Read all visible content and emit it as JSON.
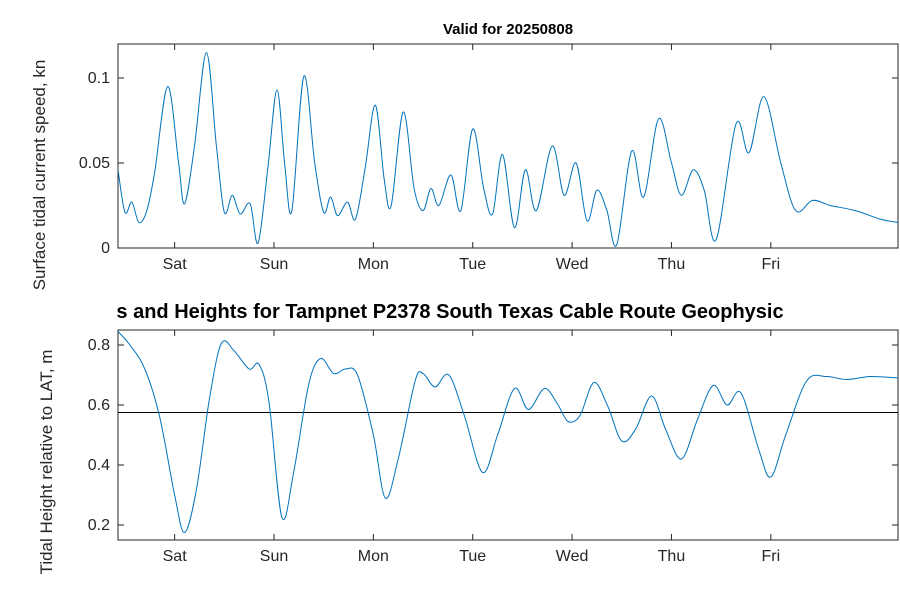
{
  "colors": {
    "line": "#0072BD",
    "axis": "#262626",
    "ref_line": "#000000"
  },
  "chart_data": [
    {
      "type": "line",
      "title": "Valid for 20250808",
      "ylabel": "Surface tidal current speed, kn",
      "xlabel": "",
      "x_unit": "day of week",
      "xlim": [
        0.43,
        8.28
      ],
      "ylim": [
        0,
        0.12
      ],
      "xticks": [
        1,
        2,
        3,
        4,
        5,
        6,
        7
      ],
      "xtick_labels": [
        "Sat",
        "Sun",
        "Mon",
        "Tue",
        "Wed",
        "Thu",
        "Fri"
      ],
      "yticks": [
        0,
        0.05,
        0.1
      ],
      "ytick_labels": [
        "0",
        "0.05",
        "0.1"
      ],
      "grid": false,
      "legend": null,
      "points": [
        [
          0.43,
          0.046
        ],
        [
          0.5,
          0.021
        ],
        [
          0.57,
          0.027
        ],
        [
          0.64,
          0.015
        ],
        [
          0.72,
          0.022
        ],
        [
          0.8,
          0.045
        ],
        [
          0.93,
          0.095
        ],
        [
          1.04,
          0.05
        ],
        [
          1.1,
          0.026
        ],
        [
          1.2,
          0.06
        ],
        [
          1.32,
          0.115
        ],
        [
          1.42,
          0.06
        ],
        [
          1.5,
          0.021
        ],
        [
          1.58,
          0.031
        ],
        [
          1.66,
          0.02
        ],
        [
          1.76,
          0.026
        ],
        [
          1.84,
          0.003
        ],
        [
          1.94,
          0.048
        ],
        [
          2.03,
          0.093
        ],
        [
          2.11,
          0.048
        ],
        [
          2.18,
          0.022
        ],
        [
          2.3,
          0.101
        ],
        [
          2.41,
          0.05
        ],
        [
          2.5,
          0.021
        ],
        [
          2.57,
          0.03
        ],
        [
          2.64,
          0.019
        ],
        [
          2.74,
          0.027
        ],
        [
          2.82,
          0.017
        ],
        [
          2.92,
          0.048
        ],
        [
          3.02,
          0.084
        ],
        [
          3.11,
          0.04
        ],
        [
          3.18,
          0.025
        ],
        [
          3.3,
          0.08
        ],
        [
          3.41,
          0.035
        ],
        [
          3.5,
          0.022
        ],
        [
          3.58,
          0.035
        ],
        [
          3.66,
          0.025
        ],
        [
          3.78,
          0.043
        ],
        [
          3.88,
          0.022
        ],
        [
          4.0,
          0.07
        ],
        [
          4.11,
          0.035
        ],
        [
          4.2,
          0.02
        ],
        [
          4.3,
          0.055
        ],
        [
          4.42,
          0.012
        ],
        [
          4.53,
          0.046
        ],
        [
          4.64,
          0.022
        ],
        [
          4.8,
          0.06
        ],
        [
          4.92,
          0.031
        ],
        [
          5.04,
          0.05
        ],
        [
          5.15,
          0.016
        ],
        [
          5.25,
          0.034
        ],
        [
          5.35,
          0.022
        ],
        [
          5.45,
          0.002
        ],
        [
          5.6,
          0.057
        ],
        [
          5.72,
          0.03
        ],
        [
          5.87,
          0.076
        ],
        [
          6.0,
          0.05
        ],
        [
          6.1,
          0.031
        ],
        [
          6.22,
          0.046
        ],
        [
          6.33,
          0.034
        ],
        [
          6.45,
          0.005
        ],
        [
          6.65,
          0.073
        ],
        [
          6.78,
          0.056
        ],
        [
          6.93,
          0.089
        ],
        [
          7.1,
          0.05
        ],
        [
          7.25,
          0.022
        ],
        [
          7.42,
          0.028
        ],
        [
          7.6,
          0.025
        ],
        [
          7.85,
          0.022
        ],
        [
          8.1,
          0.017
        ],
        [
          8.28,
          0.015
        ]
      ]
    },
    {
      "type": "line",
      "title": "s and Heights for Tampnet P2378 South Texas Cable Route Geophysic",
      "ylabel": "Tidal Height relative to LAT, m",
      "xlabel": "",
      "x_unit": "day of week",
      "xlim": [
        0.43,
        8.28
      ],
      "ylim": [
        0.15,
        0.85
      ],
      "xticks": [
        1,
        2,
        3,
        4,
        5,
        6,
        7
      ],
      "xtick_labels": [
        "Sat",
        "Sun",
        "Mon",
        "Tue",
        "Wed",
        "Thu",
        "Fri"
      ],
      "yticks": [
        0.2,
        0.4,
        0.6,
        0.8
      ],
      "ytick_labels": [
        "0.2",
        "0.4",
        "0.6",
        "0.8"
      ],
      "grid": false,
      "legend": null,
      "reference_line": 0.575,
      "points": [
        [
          0.43,
          0.845
        ],
        [
          0.55,
          0.8
        ],
        [
          0.7,
          0.72
        ],
        [
          0.85,
          0.56
        ],
        [
          1.0,
          0.3
        ],
        [
          1.1,
          0.175
        ],
        [
          1.22,
          0.32
        ],
        [
          1.35,
          0.62
        ],
        [
          1.47,
          0.805
        ],
        [
          1.6,
          0.78
        ],
        [
          1.75,
          0.72
        ],
        [
          1.85,
          0.735
        ],
        [
          1.95,
          0.61
        ],
        [
          2.08,
          0.225
        ],
        [
          2.2,
          0.38
        ],
        [
          2.35,
          0.67
        ],
        [
          2.47,
          0.755
        ],
        [
          2.6,
          0.705
        ],
        [
          2.72,
          0.72
        ],
        [
          2.84,
          0.7
        ],
        [
          3.0,
          0.5
        ],
        [
          3.12,
          0.29
        ],
        [
          3.25,
          0.42
        ],
        [
          3.42,
          0.68
        ],
        [
          3.5,
          0.705
        ],
        [
          3.62,
          0.66
        ],
        [
          3.76,
          0.7
        ],
        [
          3.92,
          0.56
        ],
        [
          4.1,
          0.375
        ],
        [
          4.25,
          0.5
        ],
        [
          4.42,
          0.655
        ],
        [
          4.56,
          0.585
        ],
        [
          4.72,
          0.655
        ],
        [
          4.85,
          0.605
        ],
        [
          4.96,
          0.545
        ],
        [
          5.08,
          0.565
        ],
        [
          5.22,
          0.675
        ],
        [
          5.36,
          0.595
        ],
        [
          5.5,
          0.48
        ],
        [
          5.64,
          0.52
        ],
        [
          5.8,
          0.63
        ],
        [
          5.94,
          0.52
        ],
        [
          6.1,
          0.42
        ],
        [
          6.26,
          0.55
        ],
        [
          6.42,
          0.665
        ],
        [
          6.56,
          0.6
        ],
        [
          6.7,
          0.64
        ],
        [
          6.88,
          0.45
        ],
        [
          7.0,
          0.36
        ],
        [
          7.15,
          0.5
        ],
        [
          7.36,
          0.68
        ],
        [
          7.56,
          0.695
        ],
        [
          7.76,
          0.685
        ],
        [
          8.0,
          0.695
        ],
        [
          8.28,
          0.69
        ]
      ]
    }
  ]
}
